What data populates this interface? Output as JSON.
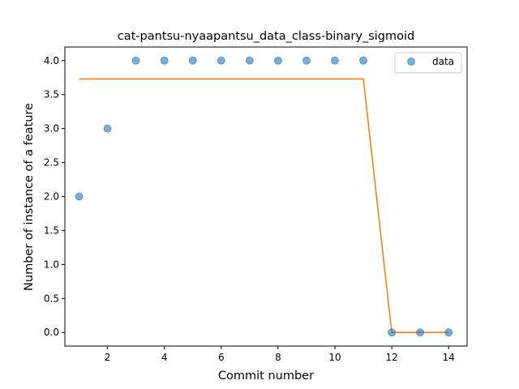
{
  "chart_data": {
    "type": "scatter",
    "title": "cat-pantsu-nyaapantsu_data_class-binary_sigmoid",
    "xlabel": "Commit number",
    "ylabel": "Number of instance of a feature",
    "xlim": [
      0.5,
      14.65
    ],
    "ylim": [
      -0.2,
      4.2
    ],
    "xticks": [
      2,
      4,
      6,
      8,
      10,
      12,
      14
    ],
    "yticks": [
      0.0,
      0.5,
      1.0,
      1.5,
      2.0,
      2.5,
      3.0,
      3.5,
      4.0
    ],
    "xtick_labels": [
      "2",
      "4",
      "6",
      "8",
      "10",
      "12",
      "14"
    ],
    "ytick_labels": [
      "0.0",
      "0.5",
      "1.0",
      "1.5",
      "2.0",
      "2.5",
      "3.0",
      "3.5",
      "4.0"
    ],
    "grid": false,
    "legend_position": "top-right",
    "series": [
      {
        "name": "data",
        "kind": "scatter",
        "color": "#1f77b4",
        "x": [
          1,
          2,
          3,
          4,
          5,
          6,
          7,
          8,
          9,
          10,
          11,
          12,
          13,
          14
        ],
        "y": [
          2,
          3,
          4,
          4,
          4,
          4,
          4,
          4,
          4,
          4,
          4,
          0,
          0,
          0
        ]
      },
      {
        "kind": "line",
        "color": "#ff7f0e",
        "x": [
          1,
          2,
          3,
          4,
          5,
          6,
          7,
          8,
          9,
          10,
          11,
          12,
          13,
          14
        ],
        "y": [
          3.73,
          3.73,
          3.73,
          3.73,
          3.73,
          3.73,
          3.73,
          3.73,
          3.73,
          3.73,
          3.73,
          0.0,
          0.0,
          0.0
        ]
      }
    ]
  }
}
